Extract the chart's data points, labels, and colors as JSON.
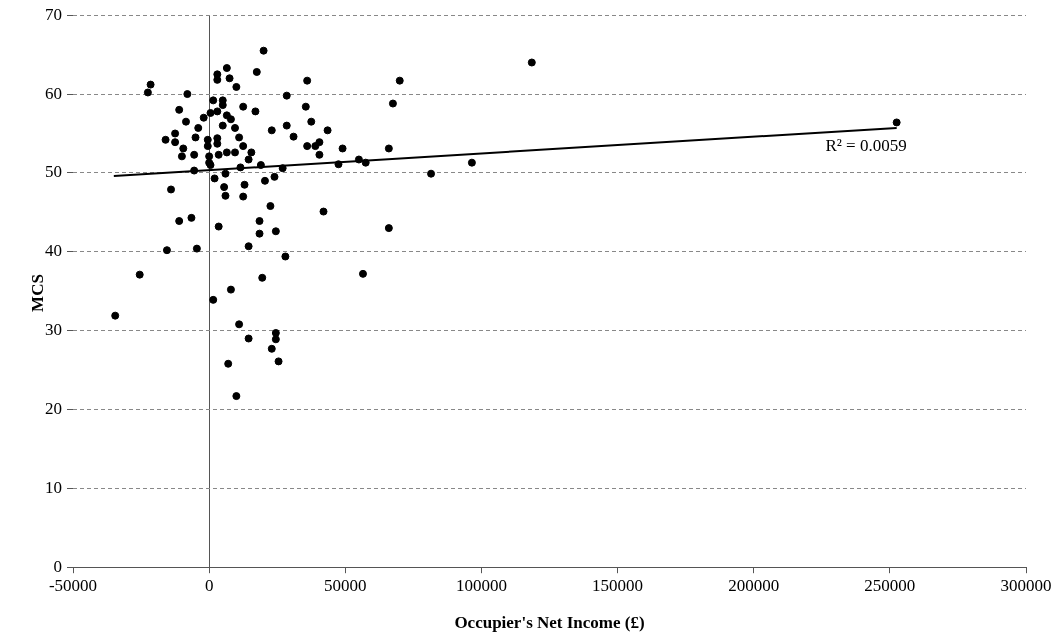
{
  "chart_data": {
    "type": "scatter",
    "xlabel": "Occupier's Net Income (£)",
    "ylabel": "MCS",
    "xlim": [
      -50000,
      300000
    ],
    "xticks": [
      -50000,
      0,
      50000,
      100000,
      150000,
      200000,
      250000,
      300000
    ],
    "ylim": [
      0,
      70
    ],
    "yticks": [
      0,
      10,
      20,
      30,
      40,
      50,
      60,
      70
    ],
    "grid": "y",
    "marker": "circle",
    "series": [
      {
        "color": "#000000",
        "x": [
          -21500,
          -22500,
          -8000,
          6500,
          3000,
          3000,
          7500,
          10000,
          17500,
          1500,
          5000,
          5000,
          -11000,
          -8500,
          -2000,
          500,
          3000,
          6500,
          8000,
          12500,
          17000,
          23000,
          28500,
          28500,
          5000,
          9500,
          -4000,
          -5000,
          -12500,
          -16000,
          -12500,
          -500,
          3000,
          -500,
          3000,
          11000,
          12500,
          15500,
          -9500,
          -10000,
          -5500,
          0,
          3500,
          6500,
          9500,
          14500,
          19000,
          27000,
          0,
          500,
          11500,
          -5500,
          6000,
          2000,
          20500,
          24000,
          -14000,
          5500,
          6000,
          13000,
          12500,
          22500,
          -11000,
          -6500,
          3500,
          18500,
          18500,
          24500,
          14500,
          -15500,
          -4500,
          28000,
          -25500,
          -34500,
          1500,
          8000,
          19500,
          11000,
          14500,
          24500,
          24500,
          23000,
          25500,
          7000,
          10000,
          36000,
          70000,
          35500,
          67500,
          31000,
          37500,
          43500,
          36000,
          39000,
          40500,
          40500,
          49000,
          66000,
          47500,
          55000,
          57500,
          81500,
          96500,
          42000,
          66000,
          56500,
          118500,
          252500,
          20000
        ],
        "values": [
          61.2,
          60.2,
          60.0,
          63.3,
          62.5,
          61.8,
          62.0,
          60.9,
          62.8,
          59.2,
          59.2,
          58.6,
          58.0,
          56.5,
          57.0,
          57.6,
          57.8,
          57.3,
          56.8,
          58.4,
          57.8,
          55.4,
          56.0,
          59.8,
          56.0,
          55.7,
          55.7,
          54.5,
          55.0,
          54.2,
          53.9,
          54.2,
          54.4,
          53.4,
          53.7,
          54.5,
          53.4,
          52.6,
          53.1,
          52.1,
          52.3,
          52.1,
          52.3,
          52.6,
          52.6,
          51.7,
          51.0,
          50.6,
          51.3,
          51.0,
          50.7,
          50.3,
          49.9,
          49.3,
          49.0,
          49.5,
          47.9,
          48.2,
          47.1,
          48.5,
          47.0,
          45.8,
          43.9,
          44.3,
          43.2,
          43.9,
          42.3,
          42.6,
          40.7,
          40.2,
          40.4,
          39.4,
          37.1,
          31.9,
          33.9,
          35.2,
          36.7,
          30.8,
          29.0,
          29.7,
          28.9,
          27.7,
          26.1,
          25.8,
          21.7,
          61.7,
          61.7,
          58.4,
          58.8,
          54.6,
          56.5,
          55.4,
          53.4,
          53.4,
          53.9,
          52.3,
          53.1,
          53.1,
          51.1,
          51.7,
          51.3,
          49.9,
          51.3,
          45.1,
          43.0,
          37.2,
          64.0,
          56.4,
          65.5
        ]
      },
      {
        "type": "line",
        "color": "#000000",
        "marker": "none",
        "x": [
          -35000,
          252500
        ],
        "values": [
          49.6,
          55.7
        ]
      }
    ],
    "annotations": [
      "R² = 0.0059"
    ]
  }
}
